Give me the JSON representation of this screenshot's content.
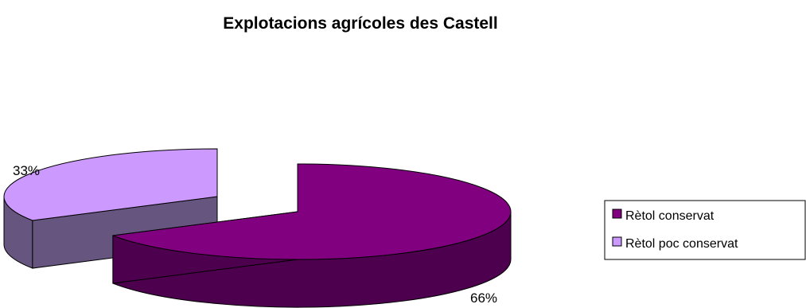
{
  "chart_data": {
    "type": "pie",
    "title": "Explotacions agrícoles des Castell",
    "labels": [
      "Rètol conservat",
      "Rètol poc conservat"
    ],
    "values": [
      66,
      33
    ],
    "data_labels": [
      "66%",
      "33%"
    ],
    "colors": [
      "#800080",
      "#CC99FF"
    ],
    "side_colors": [
      "#4D004D",
      "#66557F"
    ],
    "legend_position": "right",
    "exploded": true,
    "three_d": true
  }
}
